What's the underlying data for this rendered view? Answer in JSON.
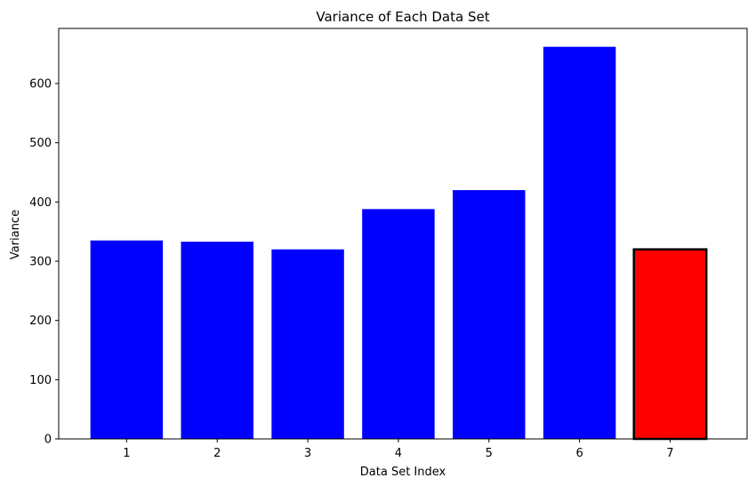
{
  "chart_data": {
    "type": "bar",
    "title": "Variance of Each Data Set",
    "xlabel": "Data Set Index",
    "ylabel": "Variance",
    "categories": [
      "1",
      "2",
      "3",
      "4",
      "5",
      "6",
      "7"
    ],
    "values": [
      335,
      333,
      320,
      388,
      420,
      662,
      320
    ],
    "ylim": [
      0,
      693
    ],
    "yticks": [
      "0",
      "100",
      "200",
      "300",
      "400",
      "500",
      "600"
    ],
    "grid": false,
    "highlighted_category": "7",
    "colors": {
      "bar": "#0000ff",
      "highlight": "#ff0000",
      "highlight_edge": "#000000"
    }
  }
}
